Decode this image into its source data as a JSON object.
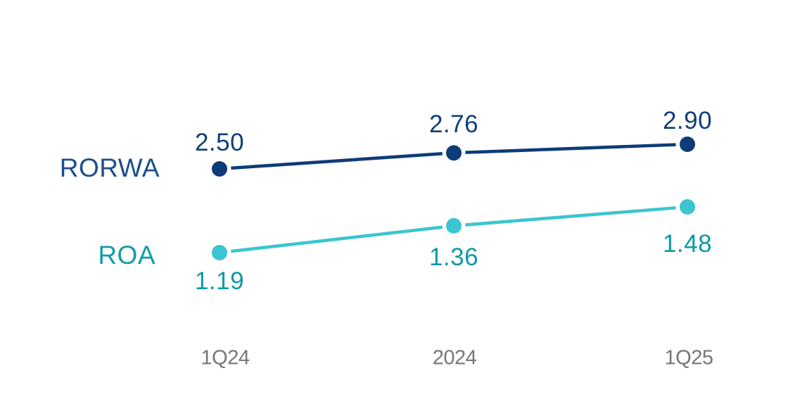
{
  "chart_data": {
    "type": "line",
    "title": "",
    "categories": [
      "1Q24",
      "2024",
      "1Q25"
    ],
    "series": [
      {
        "name": "RORWA",
        "values": [
          2.5,
          2.76,
          2.9
        ],
        "labels": [
          "2.50",
          "2.76",
          "2.90"
        ],
        "color": "#0d3c78",
        "label_color": "#0e3d7a",
        "legend_color": "#1b4e8c",
        "label_position": "above"
      },
      {
        "name": "ROA",
        "values": [
          1.19,
          1.36,
          1.48
        ],
        "labels": [
          "1.19",
          "1.36",
          "1.48"
        ],
        "color": "#3bc5d0",
        "label_color": "#0d99a6",
        "legend_color": "#149ba8",
        "label_position": "below"
      }
    ],
    "legend_position": "left",
    "grid": false,
    "axes": "hidden",
    "x_tick_color": "#767676",
    "background": "#ffffff",
    "marker_style": "filled-dot-with-white-halo"
  }
}
